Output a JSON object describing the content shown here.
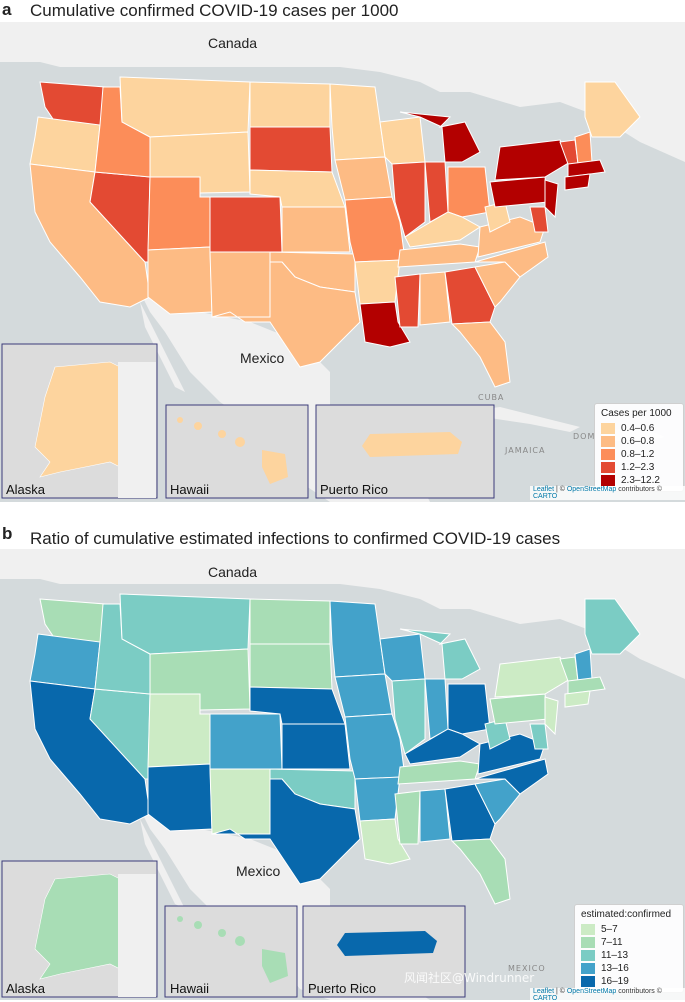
{
  "panel_a": {
    "letter": "a",
    "title": "Cumulative confirmed COVID-19 cases per 1000",
    "labels": {
      "canada": "Canada",
      "mexico": "Mexico",
      "cuba": "CUBA",
      "jamaica": "JAMAICA",
      "dom": "DOM"
    },
    "insets": {
      "alaska": "Alaska",
      "hawaii": "Hawaii",
      "puerto_rico": "Puerto Rico"
    },
    "legend": {
      "title": "Cases per 1000",
      "items": [
        {
          "label": "0.4–0.6",
          "color": "#fdd49e"
        },
        {
          "label": "0.6–0.8",
          "color": "#fdbb84"
        },
        {
          "label": "0.8–1.2",
          "color": "#fc8d59"
        },
        {
          "label": "1.2–2.3",
          "color": "#e34a33"
        },
        {
          "label": "2.3–12.2",
          "color": "#b30000"
        }
      ]
    },
    "attribution": {
      "leaflet": "Leaflet",
      "sep1": " | © ",
      "osm": "OpenStreetMap",
      "mid": " contributors © ",
      "carto": "CARTO"
    }
  },
  "panel_b": {
    "letter": "b",
    "title": "Ratio of cumulative estimated infections to confirmed COVID-19 cases",
    "labels": {
      "canada": "Canada",
      "mexico": "Mexico",
      "mexico_small": "MEXICO"
    },
    "insets": {
      "alaska": "Alaska",
      "hawaii": "Hawaii",
      "puerto_rico": "Puerto Rico"
    },
    "legend": {
      "title": "estimated:confirmed",
      "items": [
        {
          "label": "5–7",
          "color": "#ccebc5"
        },
        {
          "label": "7–11",
          "color": "#a8ddb5"
        },
        {
          "label": "11–13",
          "color": "#7bccc4"
        },
        {
          "label": "13–16",
          "color": "#43a2ca"
        },
        {
          "label": "16–19",
          "color": "#0868ac"
        }
      ]
    },
    "attribution": {
      "leaflet": "Leaflet",
      "sep1": " | © ",
      "osm": "OpenStreetMap",
      "mid": " contributors © ",
      "carto": "CARTO"
    },
    "watermark": "风闻社区@Windrunner"
  },
  "colors": {
    "ocean": "#d4dadc",
    "land": "#f2f2f2",
    "lake": "#d4dadc",
    "border": "#ffffff"
  }
}
